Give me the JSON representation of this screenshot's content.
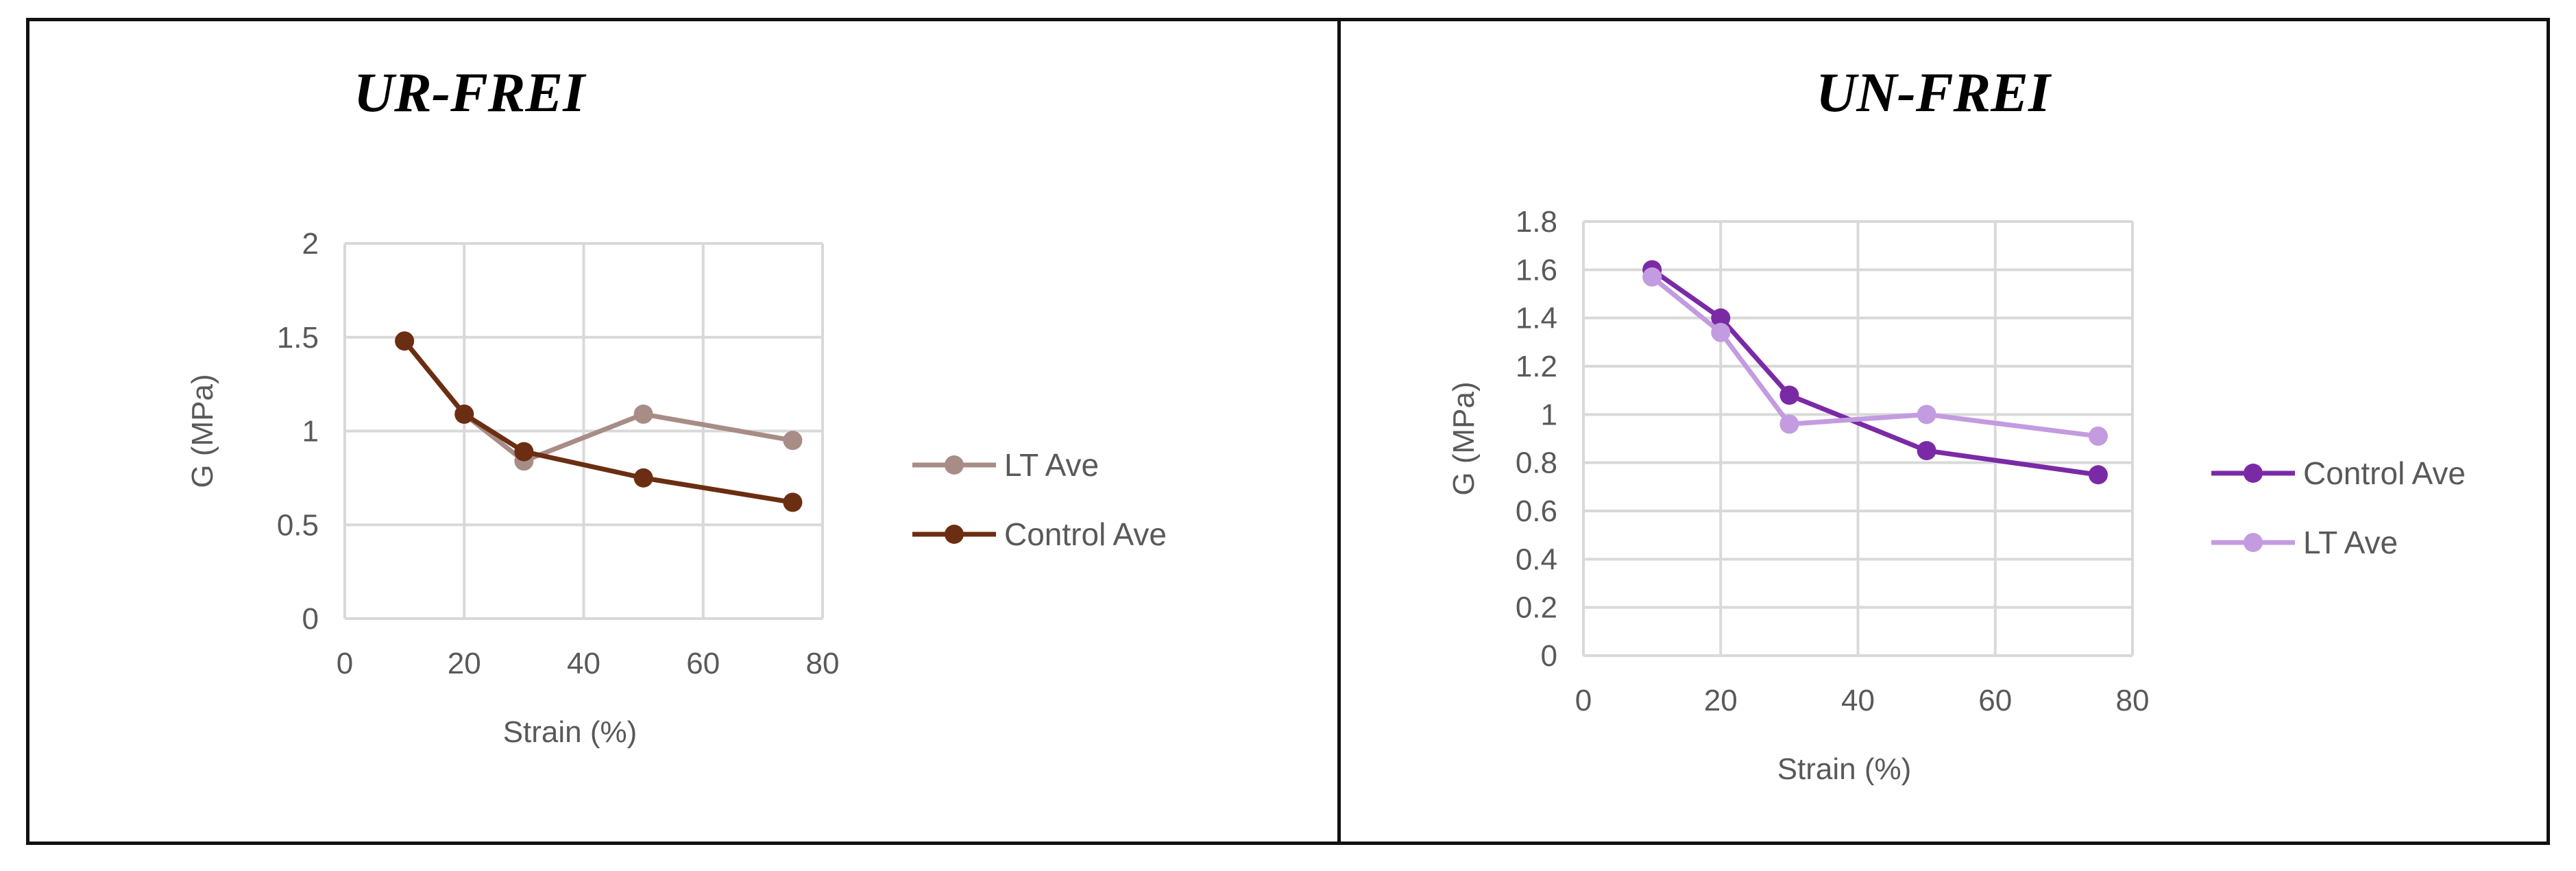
{
  "panels": [
    {
      "title": "UR-FREI",
      "chart_data": {
        "type": "line",
        "xlabel": "Strain (%)",
        "ylabel": "G (MPa)",
        "xlim": [
          0,
          80
        ],
        "ylim": [
          0,
          2
        ],
        "xticks": [
          0,
          20,
          40,
          60,
          80
        ],
        "yticks": [
          0,
          0.5,
          1,
          1.5,
          2
        ],
        "ytick_labels": [
          "0",
          "0.5",
          "1",
          "1.5",
          "2"
        ],
        "grid": true,
        "legend_position": "right",
        "series": [
          {
            "name": "LT Ave",
            "color": "#a88c86",
            "x": [
              10,
              20,
              30,
              50,
              75
            ],
            "y": [
              1.48,
              1.09,
              0.84,
              1.09,
              0.95
            ]
          },
          {
            "name": "Control Ave",
            "color": "#6b2e12",
            "x": [
              10,
              20,
              30,
              50,
              75
            ],
            "y": [
              1.48,
              1.09,
              0.89,
              0.75,
              0.62
            ]
          }
        ]
      }
    },
    {
      "title": "UN-FREI",
      "chart_data": {
        "type": "line",
        "xlabel": "Strain (%)",
        "ylabel": "G (MPa)",
        "xlim": [
          0,
          80
        ],
        "ylim": [
          0,
          1.8
        ],
        "xticks": [
          0,
          20,
          40,
          60,
          80
        ],
        "yticks": [
          0,
          0.2,
          0.4,
          0.6,
          0.8,
          1,
          1.2,
          1.4,
          1.6,
          1.8
        ],
        "ytick_labels": [
          "0",
          "0.2",
          "0.4",
          "0.6",
          "0.8",
          "1",
          "1.2",
          "1.4",
          "1.6",
          "1.8"
        ],
        "grid": true,
        "legend_position": "right",
        "series": [
          {
            "name": "Control Ave",
            "color": "#7b2aa6",
            "x": [
              10,
              20,
              30,
              50,
              75
            ],
            "y": [
              1.6,
              1.4,
              1.08,
              0.85,
              0.75
            ]
          },
          {
            "name": "LT Ave",
            "color": "#c39be0",
            "x": [
              10,
              20,
              30,
              50,
              75
            ],
            "y": [
              1.57,
              1.34,
              0.96,
              1.0,
              0.91
            ]
          }
        ]
      }
    }
  ]
}
